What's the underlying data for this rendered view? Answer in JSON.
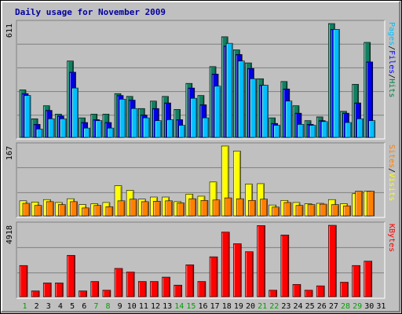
{
  "chart_data": {
    "type": "bar",
    "title": "Daily usage for November 2009",
    "days": [
      "1",
      "2",
      "3",
      "4",
      "5",
      "6",
      "7",
      "8",
      "9",
      "10",
      "11",
      "12",
      "13",
      "14",
      "15",
      "16",
      "17",
      "18",
      "19",
      "20",
      "21",
      "22",
      "23",
      "24",
      "25",
      "26",
      "27",
      "28",
      "29",
      "30",
      "31"
    ],
    "weekend_days": [
      1,
      7,
      8,
      14,
      15,
      21,
      22,
      28,
      29
    ],
    "ylim_top_max": 611,
    "ylim_mid_max": 167,
    "ylim_bot_max": 4918,
    "panels": [
      {
        "id": "top",
        "ymax_label": "611",
        "ylim": [
          0,
          611
        ],
        "legend": [
          {
            "text": "Pages",
            "color": "#00c0ff"
          },
          {
            "text": "/",
            "color": "#000000"
          },
          {
            "text": "Files",
            "color": "#0000ff"
          },
          {
            "text": "/",
            "color": "#000000"
          },
          {
            "text": "Hits",
            "color": "#008040"
          }
        ],
        "series": [
          {
            "name": "Hits",
            "color": "#108060",
            "values": [
              255,
              100,
              170,
              125,
              410,
              105,
              125,
              125,
              235,
              220,
              155,
              195,
              220,
              150,
              290,
              225,
              380,
              540,
              470,
              400,
              315,
              105,
              300,
              170,
              90,
              110,
              611,
              140,
              285,
              510,
              0
            ]
          },
          {
            "name": "Files",
            "color": "#0000e8",
            "values": [
              235,
              70,
              145,
              115,
              350,
              80,
              95,
              80,
              225,
              200,
              120,
              155,
              185,
              95,
              265,
              175,
              340,
              490,
              445,
              370,
              280,
              75,
              260,
              130,
              70,
              90,
              580,
              130,
              185,
              405,
              0
            ]
          },
          {
            "name": "Pages",
            "color": "#00c0ff",
            "values": [
              225,
              45,
              100,
              100,
              265,
              50,
              90,
              50,
              205,
              155,
              105,
              90,
              95,
              65,
              210,
              105,
              275,
              505,
              410,
              315,
              280,
              65,
              195,
              70,
              65,
              85,
              580,
              80,
              100,
              90,
              0
            ]
          }
        ]
      },
      {
        "id": "mid",
        "ymax_label": "167",
        "ylim": [
          0,
          167
        ],
        "legend": [
          {
            "text": "Sites",
            "color": "#ff8000"
          },
          {
            "text": "/",
            "color": "#000000"
          },
          {
            "text": "Visits",
            "color": "#ffff00"
          }
        ],
        "series": [
          {
            "name": "Visits",
            "color": "#ffff00",
            "values": [
              36,
              33,
              39,
              32,
              41,
              27,
              29,
              32,
              72,
              61,
              40,
              45,
              45,
              34,
              52,
              47,
              81,
              170,
              155,
              76,
              77,
              26,
              37,
              32,
              29,
              30,
              39,
              29,
              53,
              59,
              0
            ]
          },
          {
            "name": "Sites",
            "color": "#ff8000",
            "values": [
              30,
              25,
              34,
              27,
              34,
              19,
              25,
              22,
              36,
              40,
              34,
              35,
              36,
              31,
              41,
              37,
              38,
              43,
              41,
              37,
              40,
              21,
              32,
              25,
              27,
              28,
              27,
              24,
              59,
              59,
              0
            ]
          }
        ]
      },
      {
        "id": "bot",
        "ymax_label": "4918",
        "ylim": [
          0,
          4918
        ],
        "legend": [
          {
            "text": "KBytes",
            "color": "#ff0000"
          }
        ],
        "series": [
          {
            "name": "KBytes",
            "color": "#ff0000",
            "values": [
              2150,
              400,
              950,
              950,
              2850,
              400,
              1050,
              450,
              1950,
              1700,
              1050,
              1050,
              1350,
              800,
              2200,
              1050,
              2750,
              4450,
              3650,
              3100,
              4900,
              450,
              4250,
              850,
              450,
              750,
              5000,
              1000,
              2150,
              2450,
              0
            ]
          }
        ]
      }
    ]
  }
}
